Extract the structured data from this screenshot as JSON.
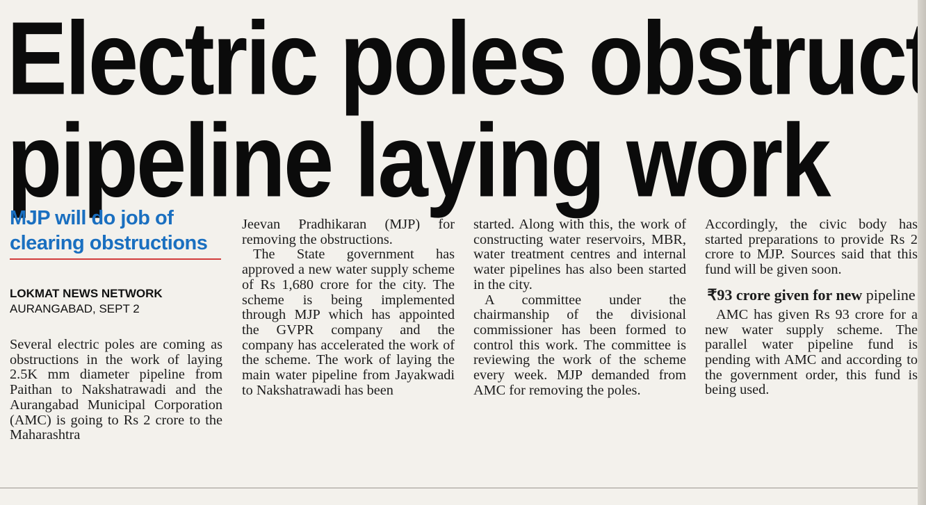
{
  "headline": {
    "line1": "Electric poles obstruct",
    "line2": "pipeline laying work"
  },
  "subhead": "MJP will do job of clearing obstructions",
  "byline": {
    "agency": "LOKMAT NEWS NETWORK",
    "dateline": "AURANGABAD, SEPT 2"
  },
  "columns": {
    "col1": {
      "p1": "Several electric poles are coming as obstructions in the work of laying 2.5K mm diameter pipeline from Paithan to Nakshatrawadi and the Aurangabad Municipal Corporation (AMC) is going to Rs 2 crore to the Maharashtra"
    },
    "col2": {
      "p1": "Jeevan Pradhikaran (MJP) for removing the obstructions.",
      "p2": "The State government has approved a new water supply scheme of Rs 1,680 crore for the city. The scheme is being implemented through MJP which has appointed the GVPR company and the company has accelerated the work of the scheme. The work of laying the main water pipeline from Jayakwadi to Nakshatrawadi has been"
    },
    "col3": {
      "p1": "started. Along with this, the work of constructing water reservoirs, MBR, water treatment centres and internal water pipelines has also been started in the city.",
      "p2": "A committee under the chairmanship of the divisional commissioner has been formed to control this work. The committee is reviewing the work of the scheme every week. MJP demanded from AMC for removing the poles."
    },
    "col4": {
      "p1": "Accordingly, the civic body has started preparations to provide Rs 2 crore to MJP. Sources said that this fund will be given soon.",
      "subheading_bold": "₹93 crore given for new",
      "subheading_light": "pipeline",
      "p2": "AMC has given Rs 93 crore for a new water supply scheme. The parallel water pipeline fund is pending with AMC and according to the government order, this fund is being used."
    }
  }
}
